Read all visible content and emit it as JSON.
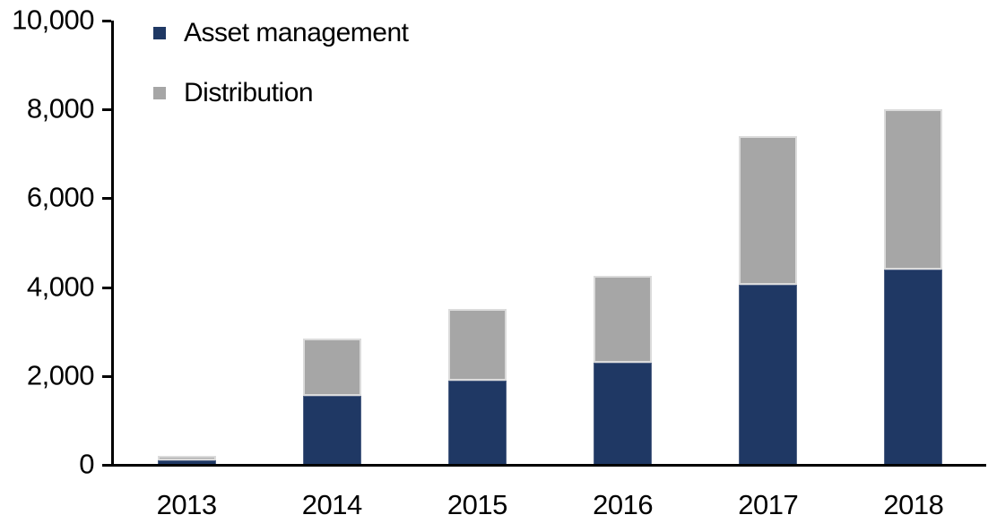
{
  "chart_data": {
    "type": "bar",
    "stacked": true,
    "title": "",
    "xlabel": "",
    "ylabel": "",
    "categories": [
      "2013",
      "2014",
      "2015",
      "2016",
      "2017",
      "2018"
    ],
    "series": [
      {
        "name": "Asset management",
        "color": "#1F3864",
        "values": [
          100,
          1550,
          1900,
          2300,
          4050,
          4400
        ]
      },
      {
        "name": "Distribution",
        "color": "#A6A6A6",
        "values": [
          100,
          1300,
          1600,
          1950,
          3350,
          3600
        ]
      }
    ],
    "totals": [
      200,
      2850,
      3500,
      4250,
      7400,
      8000
    ],
    "ylim": [
      0,
      10000
    ],
    "y_ticks": [
      0,
      2000,
      4000,
      6000,
      8000,
      10000
    ],
    "y_tick_labels": [
      "0",
      "2,000",
      "4,000",
      "6,000",
      "8,000",
      "10,000"
    ],
    "grid": false,
    "legend_position": "top-left",
    "axis_color": "#000000",
    "text_color": "#000000",
    "background_color": "#ffffff"
  }
}
